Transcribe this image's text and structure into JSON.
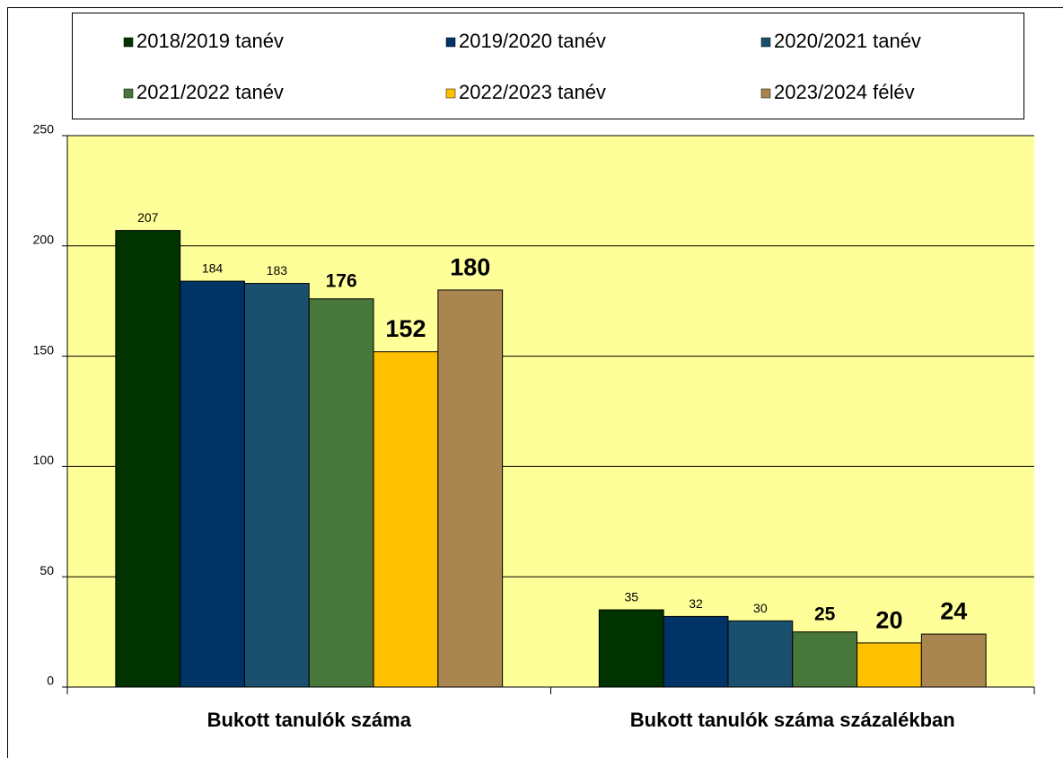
{
  "chart_data": {
    "type": "bar",
    "categories": [
      "Bukott tanulók száma",
      "Bukott tanulók száma százalékban"
    ],
    "series": [
      {
        "name": "2018/2019 tanév",
        "color": "#003300",
        "values": [
          207,
          35
        ]
      },
      {
        "name": "2019/2020 tanév",
        "color": "#003366",
        "values": [
          184,
          32
        ]
      },
      {
        "name": "2020/2021 tanév",
        "color": "#1b4f6e",
        "values": [
          183,
          30
        ]
      },
      {
        "name": "2021/2022 tanév",
        "color": "#47773a",
        "values": [
          176,
          25
        ]
      },
      {
        "name": "2022/2023 tanév",
        "color": "#ffc000",
        "values": [
          152,
          20
        ]
      },
      {
        "name": "2023/2024 félév",
        "color": "#a9854f",
        "values": [
          180,
          24
        ]
      }
    ],
    "ylim": [
      0,
      250
    ],
    "yticks": [
      0,
      50,
      100,
      150,
      200,
      250
    ],
    "grid": true,
    "legend": "top",
    "plot_background": "#ffff99"
  }
}
